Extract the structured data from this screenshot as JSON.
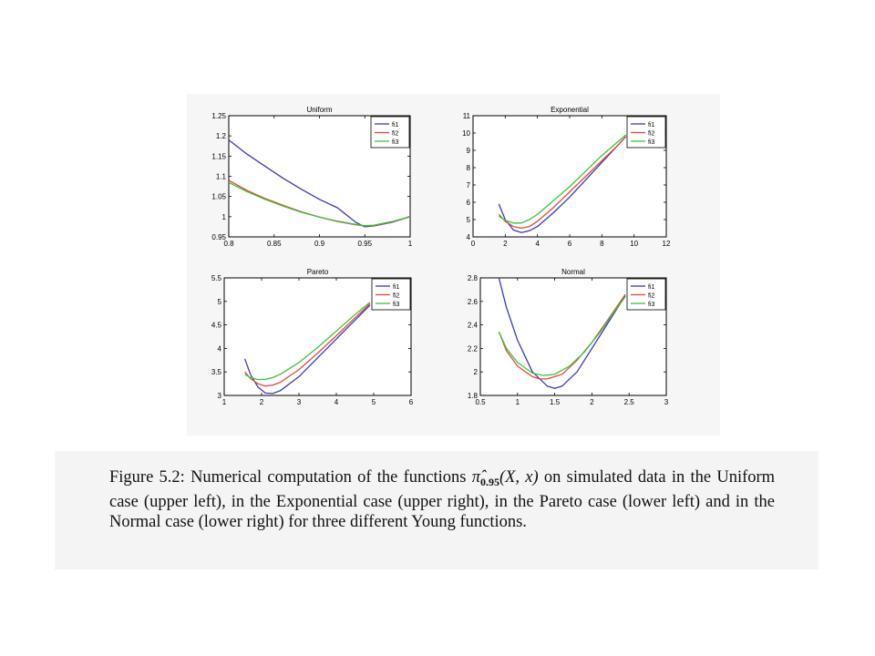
{
  "chart_data": [
    {
      "type": "line",
      "title": "Uniform",
      "xlim": [
        0.8,
        1
      ],
      "ylim": [
        0.95,
        1.25
      ],
      "xticks": [
        "0.8",
        "0.85",
        "0.9",
        "0.95",
        "1"
      ],
      "xtick_values": [
        0.8,
        0.85,
        0.9,
        0.95,
        1
      ],
      "yticks": [
        "0.95",
        "1",
        "1.05",
        "1.1",
        "1.15",
        "1.2",
        "1.25"
      ],
      "ytick_values": [
        0.95,
        1,
        1.05,
        1.1,
        1.15,
        1.2,
        1.25
      ],
      "legend": "top-right",
      "series": [
        {
          "name": "fi1",
          "color": "#3a3ab8",
          "x": [
            0.8,
            0.82,
            0.84,
            0.86,
            0.88,
            0.9,
            0.92,
            0.94,
            0.95,
            0.96,
            0.98,
            1.0
          ],
          "y": [
            1.19,
            1.155,
            1.125,
            1.095,
            1.068,
            1.043,
            1.022,
            0.986,
            0.975,
            0.977,
            0.986,
            1.0
          ]
        },
        {
          "name": "fi2",
          "color": "#e04a3a",
          "x": [
            0.8,
            0.82,
            0.84,
            0.86,
            0.88,
            0.9,
            0.92,
            0.94,
            0.95,
            0.96,
            0.98,
            1.0
          ],
          "y": [
            1.09,
            1.065,
            1.045,
            1.028,
            1.012,
            0.999,
            0.988,
            0.98,
            0.977,
            0.978,
            0.987,
            1.0
          ]
        },
        {
          "name": "fi3",
          "color": "#3ac43a",
          "x": [
            0.8,
            0.82,
            0.84,
            0.86,
            0.88,
            0.9,
            0.92,
            0.94,
            0.95,
            0.96,
            0.98,
            1.0
          ],
          "y": [
            1.085,
            1.062,
            1.043,
            1.026,
            1.011,
            0.999,
            0.989,
            0.981,
            0.978,
            0.979,
            0.988,
            1.0
          ]
        }
      ]
    },
    {
      "type": "line",
      "title": "Exponential",
      "xlim": [
        0,
        12
      ],
      "ylim": [
        4,
        11
      ],
      "xticks": [
        "0",
        "2",
        "4",
        "6",
        "8",
        "10",
        "12"
      ],
      "xtick_values": [
        0,
        2,
        4,
        6,
        8,
        10,
        12
      ],
      "yticks": [
        "4",
        "5",
        "6",
        "7",
        "8",
        "9",
        "10",
        "11"
      ],
      "ytick_values": [
        4,
        5,
        6,
        7,
        8,
        9,
        10,
        11
      ],
      "legend": "top-right",
      "series": [
        {
          "name": "fi1",
          "color": "#3a3ab8",
          "x": [
            1.6,
            2.0,
            2.5,
            3.0,
            3.5,
            4.0,
            5.0,
            6.0,
            7.0,
            8.0,
            9.0,
            9.5
          ],
          "y": [
            5.9,
            5.0,
            4.4,
            4.25,
            4.35,
            4.6,
            5.4,
            6.3,
            7.3,
            8.3,
            9.3,
            9.8
          ]
        },
        {
          "name": "fi2",
          "color": "#e04a3a",
          "x": [
            1.6,
            2.0,
            2.5,
            3.0,
            3.5,
            4.0,
            5.0,
            6.0,
            7.0,
            8.0,
            9.0,
            9.5
          ],
          "y": [
            5.3,
            4.9,
            4.6,
            4.5,
            4.6,
            4.9,
            5.7,
            6.6,
            7.5,
            8.4,
            9.3,
            9.8
          ]
        },
        {
          "name": "fi3",
          "color": "#3ac43a",
          "x": [
            1.6,
            2.0,
            2.5,
            3.0,
            3.5,
            4.0,
            5.0,
            6.0,
            7.0,
            8.0,
            9.0,
            9.5
          ],
          "y": [
            5.2,
            4.95,
            4.8,
            4.8,
            5.0,
            5.3,
            6.1,
            6.9,
            7.8,
            8.7,
            9.5,
            9.9
          ]
        }
      ]
    },
    {
      "type": "line",
      "title": "Pareto",
      "xlim": [
        1,
        6
      ],
      "ylim": [
        3,
        5.5
      ],
      "xticks": [
        "1",
        "2",
        "3",
        "4",
        "5",
        "6"
      ],
      "xtick_values": [
        1,
        2,
        3,
        4,
        5,
        6
      ],
      "yticks": [
        "3",
        "3.5",
        "4",
        "4.5",
        "5",
        "5.5"
      ],
      "ytick_values": [
        3,
        3.5,
        4,
        4.5,
        5,
        5.5
      ],
      "legend": "top-right",
      "series": [
        {
          "name": "fi1",
          "color": "#3a3ab8",
          "x": [
            1.55,
            1.7,
            1.9,
            2.1,
            2.3,
            2.5,
            3.0,
            3.5,
            4.0,
            4.5,
            4.9
          ],
          "y": [
            3.78,
            3.45,
            3.18,
            3.05,
            3.04,
            3.1,
            3.4,
            3.8,
            4.2,
            4.6,
            4.92
          ]
        },
        {
          "name": "fi2",
          "color": "#e04a3a",
          "x": [
            1.55,
            1.7,
            1.9,
            2.1,
            2.3,
            2.5,
            3.0,
            3.5,
            4.0,
            4.5,
            4.9
          ],
          "y": [
            3.5,
            3.36,
            3.25,
            3.2,
            3.22,
            3.28,
            3.55,
            3.9,
            4.27,
            4.65,
            4.95
          ]
        },
        {
          "name": "fi3",
          "color": "#3ac43a",
          "x": [
            1.55,
            1.7,
            1.9,
            2.1,
            2.3,
            2.5,
            3.0,
            3.5,
            4.0,
            4.5,
            4.9
          ],
          "y": [
            3.45,
            3.38,
            3.34,
            3.34,
            3.38,
            3.45,
            3.7,
            4.02,
            4.37,
            4.72,
            4.98
          ]
        }
      ]
    },
    {
      "type": "line",
      "title": "Normal",
      "xlim": [
        0.5,
        3
      ],
      "ylim": [
        1.8,
        2.8
      ],
      "xticks": [
        "0.5",
        "1",
        "1.5",
        "2",
        "2.5",
        "3"
      ],
      "xtick_values": [
        0.5,
        1,
        1.5,
        2,
        2.5,
        3
      ],
      "yticks": [
        "1.8",
        "2",
        "2.2",
        "2.4",
        "2.6",
        "2.8"
      ],
      "ytick_values": [
        1.8,
        2.0,
        2.2,
        2.4,
        2.6,
        2.8
      ],
      "legend": "top-right",
      "series": [
        {
          "name": "fi1",
          "color": "#3a3ab8",
          "x": [
            0.75,
            0.85,
            1.0,
            1.2,
            1.4,
            1.5,
            1.6,
            1.8,
            2.0,
            2.2,
            2.45
          ],
          "y": [
            2.8,
            2.55,
            2.27,
            2.0,
            1.88,
            1.86,
            1.88,
            2.0,
            2.2,
            2.4,
            2.65
          ]
        },
        {
          "name": "fi2",
          "color": "#e04a3a",
          "x": [
            0.75,
            0.85,
            1.0,
            1.2,
            1.3,
            1.4,
            1.6,
            1.8,
            2.0,
            2.2,
            2.45
          ],
          "y": [
            2.34,
            2.18,
            2.05,
            1.96,
            1.94,
            1.94,
            1.98,
            2.1,
            2.25,
            2.43,
            2.66
          ]
        },
        {
          "name": "fi3",
          "color": "#3ac43a",
          "x": [
            0.75,
            0.85,
            1.0,
            1.2,
            1.35,
            1.5,
            1.7,
            1.9,
            2.1,
            2.3,
            2.45
          ],
          "y": [
            2.34,
            2.2,
            2.08,
            1.99,
            1.97,
            1.98,
            2.05,
            2.17,
            2.33,
            2.51,
            2.64
          ]
        }
      ]
    }
  ],
  "caption": {
    "label": "Figure 5.2:",
    "text_before": "Numerical computation of the functions",
    "math_symbol": "π̂",
    "math_subscript": "0.95",
    "math_args": "(X, x)",
    "text_after": "on simulated data in the Uniform case (upper left), in the Exponential case (upper right), in the Pareto case (lower left) and in the Normal case (lower right) for three different Young functions."
  }
}
